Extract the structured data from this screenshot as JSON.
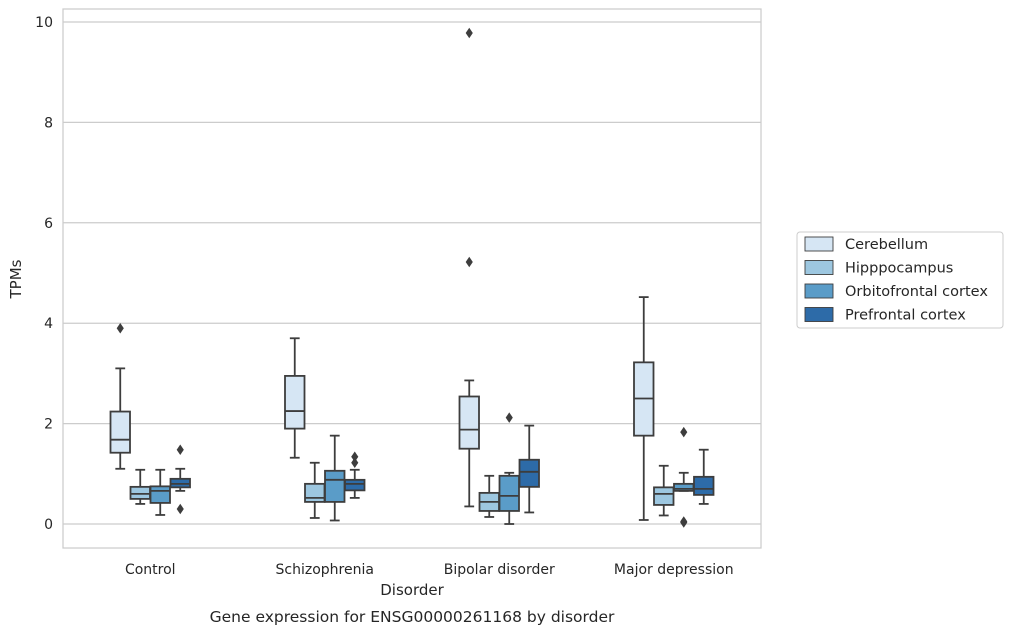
{
  "chart_data": {
    "type": "box",
    "caption": "Gene expression for ENSG00000261168 by disorder",
    "xlabel": "Disorder",
    "ylabel": "TPMs",
    "ylim": [
      -0.45,
      10.25
    ],
    "yticks": [
      0,
      2,
      4,
      6,
      8,
      10
    ],
    "grid": true,
    "legend_position": "right",
    "categories": [
      "Control",
      "Schizophrenia",
      "Bipolar disorder",
      "Major depression"
    ],
    "series": [
      {
        "name": "Cerebellum",
        "color": "#d6e6f4",
        "boxes": [
          {
            "whislo": 1.1,
            "q1": 1.42,
            "med": 1.68,
            "q3": 2.24,
            "whishi": 3.1,
            "fliers": [
              3.9
            ]
          },
          {
            "whislo": 1.32,
            "q1": 1.9,
            "med": 2.25,
            "q3": 2.95,
            "whishi": 3.7,
            "fliers": []
          },
          {
            "whislo": 0.35,
            "q1": 1.5,
            "med": 1.88,
            "q3": 2.54,
            "whishi": 2.86,
            "fliers": [
              5.22,
              9.78
            ]
          },
          {
            "whislo": 0.08,
            "q1": 1.76,
            "med": 2.5,
            "q3": 3.22,
            "whishi": 4.52,
            "fliers": []
          }
        ]
      },
      {
        "name": "Hipppocampus",
        "color": "#9dc7e0",
        "boxes": [
          {
            "whislo": 0.4,
            "q1": 0.5,
            "med": 0.6,
            "q3": 0.74,
            "whishi": 1.08,
            "fliers": []
          },
          {
            "whislo": 0.12,
            "q1": 0.44,
            "med": 0.52,
            "q3": 0.8,
            "whishi": 1.22,
            "fliers": []
          },
          {
            "whislo": 0.14,
            "q1": 0.26,
            "med": 0.44,
            "q3": 0.62,
            "whishi": 0.96,
            "fliers": []
          },
          {
            "whislo": 0.17,
            "q1": 0.38,
            "med": 0.6,
            "q3": 0.73,
            "whishi": 1.16,
            "fliers": []
          }
        ]
      },
      {
        "name": "Orbitofrontal cortex",
        "color": "#5a9cc8",
        "boxes": [
          {
            "whislo": 0.18,
            "q1": 0.42,
            "med": 0.66,
            "q3": 0.75,
            "whishi": 1.08,
            "fliers": []
          },
          {
            "whislo": 0.07,
            "q1": 0.44,
            "med": 0.88,
            "q3": 1.06,
            "whishi": 1.76,
            "fliers": []
          },
          {
            "whislo": 0.0,
            "q1": 0.26,
            "med": 0.56,
            "q3": 0.96,
            "whishi": 1.02,
            "fliers": [
              2.12
            ]
          },
          {
            "whislo": 0.66,
            "q1": 0.66,
            "med": 0.7,
            "q3": 0.8,
            "whishi": 1.02,
            "fliers": [
              0.05,
              0.03,
              1.83
            ]
          }
        ]
      },
      {
        "name": "Prefrontal cortex",
        "color": "#2d6ba8",
        "boxes": [
          {
            "whislo": 0.66,
            "q1": 0.73,
            "med": 0.8,
            "q3": 0.9,
            "whishi": 1.1,
            "fliers": [
              0.3,
              1.48
            ]
          },
          {
            "whislo": 0.52,
            "q1": 0.67,
            "med": 0.8,
            "q3": 0.88,
            "whishi": 1.08,
            "fliers": [
              1.22,
              1.34
            ]
          },
          {
            "whislo": 0.23,
            "q1": 0.74,
            "med": 1.04,
            "q3": 1.28,
            "whishi": 1.96,
            "fliers": []
          },
          {
            "whislo": 0.4,
            "q1": 0.58,
            "med": 0.7,
            "q3": 0.94,
            "whishi": 1.48,
            "fliers": []
          }
        ]
      }
    ]
  }
}
